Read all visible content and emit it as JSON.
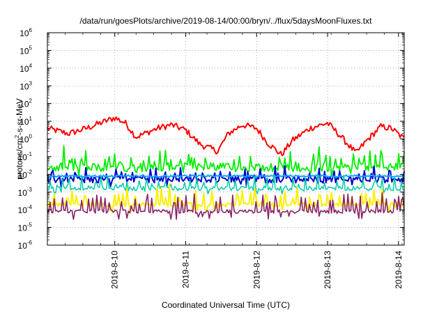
{
  "chart_data": {
    "type": "line",
    "title": "/data/run/goesPlots/archive/2019-08-14/00:00/bryn/../flux/5daysMoonFluxes.txt",
    "xlabel": "Coordinated Universal Time (UTC)",
    "ylabel": "protons/cm2-s-sr-MeV",
    "ylabel_parts": {
      "pre": "protons/cm",
      "sup": "2",
      "post": "-s-sr-MeV"
    },
    "yscale": "log",
    "ylim_exponents": [
      -6,
      6
    ],
    "y_tick_base": "10",
    "y_tick_exponents": [
      -6,
      -5,
      -4,
      -3,
      -2,
      -1,
      0,
      1,
      2,
      3,
      4,
      5,
      6
    ],
    "xlim_days": [
      0,
      5.03
    ],
    "x_tick_labels": [
      "2019-8-10",
      "2019-8-11",
      "2019-8-12",
      "2019-8-13",
      "2019-8-14"
    ],
    "x_tick_days": [
      0.95,
      1.95,
      2.95,
      3.95,
      4.95
    ],
    "grid": true,
    "legend": "none",
    "series": [
      {
        "color": "#ff0000",
        "base": 2.2,
        "amp": 0.7,
        "noise": 0.18,
        "spikes": 0.0,
        "period": 1.0,
        "phase": 0.05,
        "width": 2.0,
        "dips": [
          [
            1.5,
            0.3,
            0.8
          ],
          [
            2.35,
            0.12,
            0.7
          ],
          [
            3.3,
            0.25,
            1.0
          ],
          [
            4.35,
            0.15,
            0.9
          ]
        ],
        "anchors": [
          [
            0,
            0.6
          ],
          [
            0.3,
            0.3
          ],
          [
            0.55,
            0.6
          ],
          [
            0.95,
            1.2
          ],
          [
            1.1,
            0.9
          ],
          [
            1.25,
            0.1
          ],
          [
            1.55,
            0.6
          ],
          [
            1.75,
            0.8
          ],
          [
            1.95,
            0.5
          ],
          [
            2.15,
            -0.3
          ],
          [
            2.4,
            -0.7
          ],
          [
            2.55,
            0.3
          ],
          [
            2.75,
            0.8
          ],
          [
            2.95,
            0.6
          ],
          [
            3.1,
            -0.2
          ],
          [
            3.3,
            -0.9
          ],
          [
            3.45,
            -0.1
          ],
          [
            3.7,
            0.6
          ],
          [
            3.95,
            0.9
          ],
          [
            4.1,
            0.3
          ],
          [
            4.35,
            -0.8
          ],
          [
            4.5,
            -0.1
          ],
          [
            4.7,
            0.7
          ],
          [
            4.85,
            0.6
          ],
          [
            5.03,
            0.0
          ]
        ]
      },
      {
        "color": "#00ee00",
        "base": -1.6,
        "amp": 0.0,
        "noise": 0.25,
        "spikes": 0.55,
        "period": 0.08,
        "phase": 0.1,
        "width": 1.8
      },
      {
        "color": "#0000cc",
        "base": -2.3,
        "amp": 0.0,
        "noise": 0.18,
        "spikes": 0.45,
        "period": 0.07,
        "phase": 0.3,
        "width": 2.0
      },
      {
        "color": "#00aaff",
        "base": -2.1,
        "amp": 0.0,
        "noise": 0.05,
        "spikes": 0.0,
        "period": 0.1,
        "phase": 0.0,
        "width": 2.0
      },
      {
        "color": "#00ccaa",
        "base": -2.8,
        "amp": 0.0,
        "noise": 0.12,
        "spikes": 0.4,
        "period": 0.09,
        "phase": 0.6,
        "width": 1.5
      },
      {
        "color": "#ffee00",
        "base": -3.7,
        "amp": 0.0,
        "noise": 0.12,
        "spikes": 0.6,
        "period": 0.06,
        "phase": 0.2,
        "width": 2.0
      },
      {
        "color": "#882266",
        "base": -4.1,
        "amp": 0.0,
        "noise": 0.1,
        "spikes": 0.7,
        "period": 0.06,
        "phase": 0.45,
        "width": 1.6
      }
    ]
  }
}
